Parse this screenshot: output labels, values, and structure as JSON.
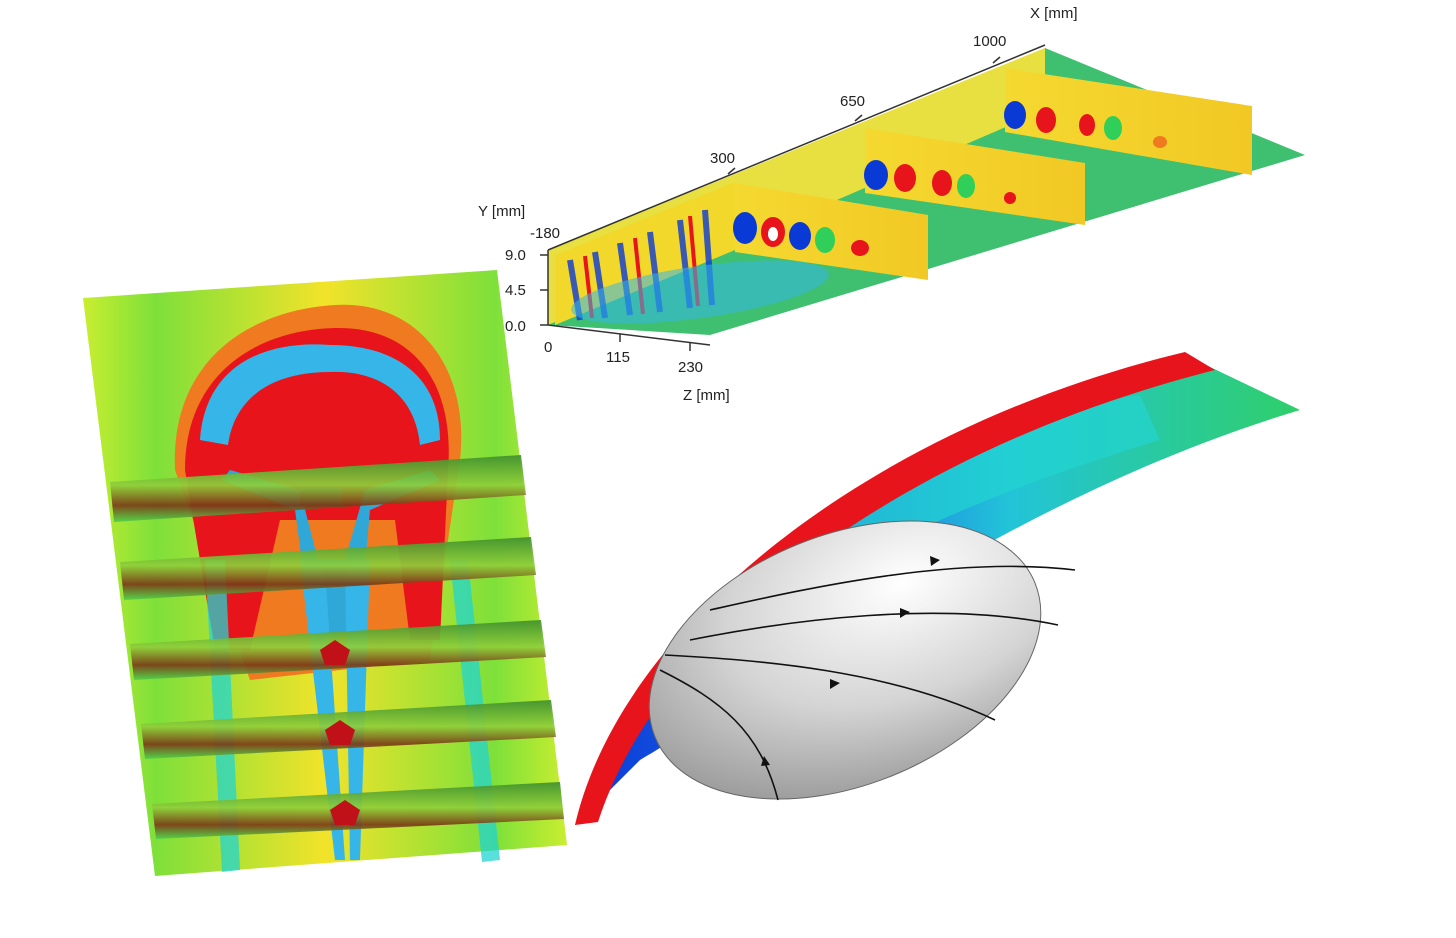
{
  "figure": {
    "x_axis": {
      "title": "X [mm]",
      "ticks": [
        "300",
        "650",
        "1000"
      ]
    },
    "y_axis": {
      "title": "Y [mm]",
      "ticks": [
        "-180",
        "9.0",
        "4.5",
        "0.0"
      ]
    },
    "z_axis": {
      "title": "Z [mm]",
      "ticks": [
        "0",
        "115",
        "230"
      ]
    },
    "colors": {
      "red": "#e8141c",
      "orange": "#f7a21b",
      "yellow": "#f2e32a",
      "light_green": "#7ee03a",
      "green": "#2fcf5a",
      "cyan": "#22d4d0",
      "sky": "#36b6e8",
      "blue": "#0a3ad6",
      "gray": "#bdbdbd"
    }
  }
}
